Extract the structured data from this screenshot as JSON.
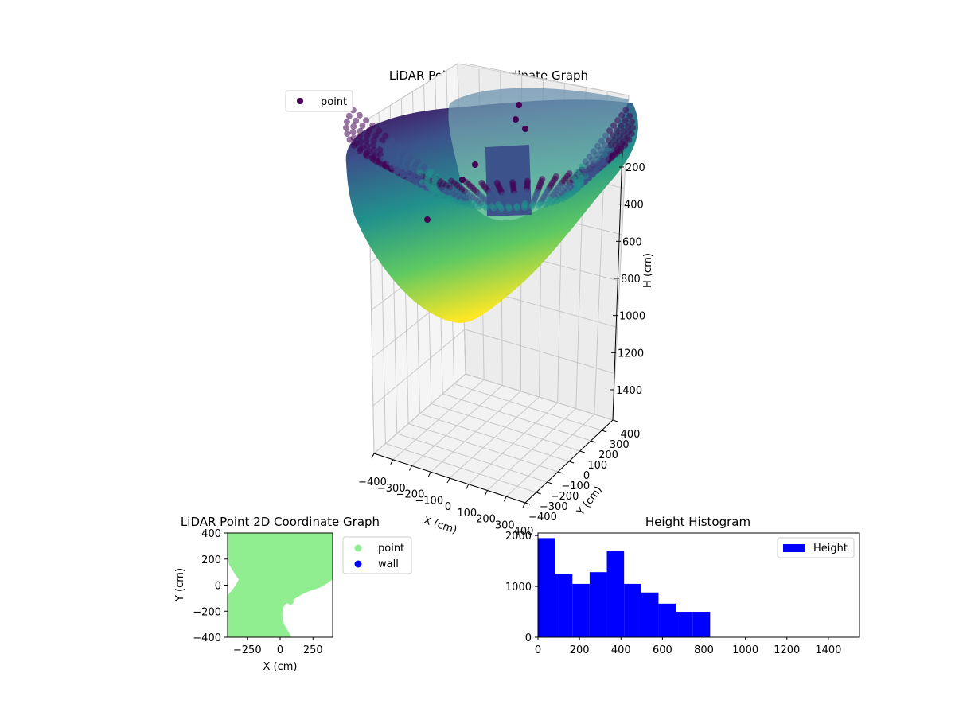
{
  "colors": {
    "viridis": [
      "#440154",
      "#3b528b",
      "#21918c",
      "#5ec962",
      "#fde725"
    ],
    "point_2d": "#90ee90",
    "wall_2d": "#0000ff",
    "histogram": "#0000ff",
    "pane": "#f2f2f2",
    "grid": "#c8c8c8"
  },
  "chart_data": [
    {
      "type": "scatter3d",
      "title": "LiDAR Point 3D Coordinate Graph",
      "xlabel": "X (cm)",
      "ylabel": "Y (cm)",
      "zlabel": "H (cm)",
      "xlim": [
        -400,
        400
      ],
      "ylim": [
        -400,
        400
      ],
      "zlim": [
        0,
        1500
      ],
      "z_inverted": true,
      "x_ticks": [
        "−400",
        "−300",
        "−200",
        "−100",
        "0",
        "100",
        "200",
        "300",
        "400"
      ],
      "y_ticks": [
        "−400",
        "−300",
        "−200",
        "−100",
        "0",
        "100",
        "200",
        "300",
        "400"
      ],
      "z_ticks": [
        "200",
        "400",
        "600",
        "800",
        "1000",
        "1200",
        "1400"
      ],
      "colormap": "viridis",
      "series": [
        {
          "name": "point"
        }
      ],
      "legend_position": "top-left",
      "grid": true
    },
    {
      "type": "scatter",
      "title": "LiDAR Point 2D Coordinate Graph",
      "xlabel": "X (cm)",
      "ylabel": "Y (cm)",
      "xlim": [
        -400,
        400
      ],
      "ylim": [
        -400,
        400
      ],
      "x_ticks": [
        "−250",
        "0",
        "250"
      ],
      "y_ticks": [
        "−400",
        "−200",
        "0",
        "200",
        "400"
      ],
      "series": [
        {
          "name": "point",
          "color": "#90ee90"
        },
        {
          "name": "wall",
          "color": "#0000ff"
        }
      ],
      "legend_position": "outside-right"
    },
    {
      "type": "bar",
      "title": "Height Histogram",
      "xlim": [
        0,
        1550
      ],
      "ylim": [
        0,
        2050
      ],
      "x_ticks": [
        "0",
        "200",
        "400",
        "600",
        "800",
        "1000",
        "1200",
        "1400"
      ],
      "y_ticks": [
        "0",
        "1000",
        "2000"
      ],
      "bin_width": 83,
      "bins": [
        0,
        83,
        166,
        249,
        332,
        415,
        498,
        581,
        664,
        747
      ],
      "values": [
        1950,
        1250,
        1050,
        1280,
        1690,
        1050,
        880,
        660,
        500,
        500
      ],
      "series": [
        {
          "name": "Height",
          "color": "#0000ff"
        }
      ],
      "legend_position": "top-right"
    }
  ]
}
